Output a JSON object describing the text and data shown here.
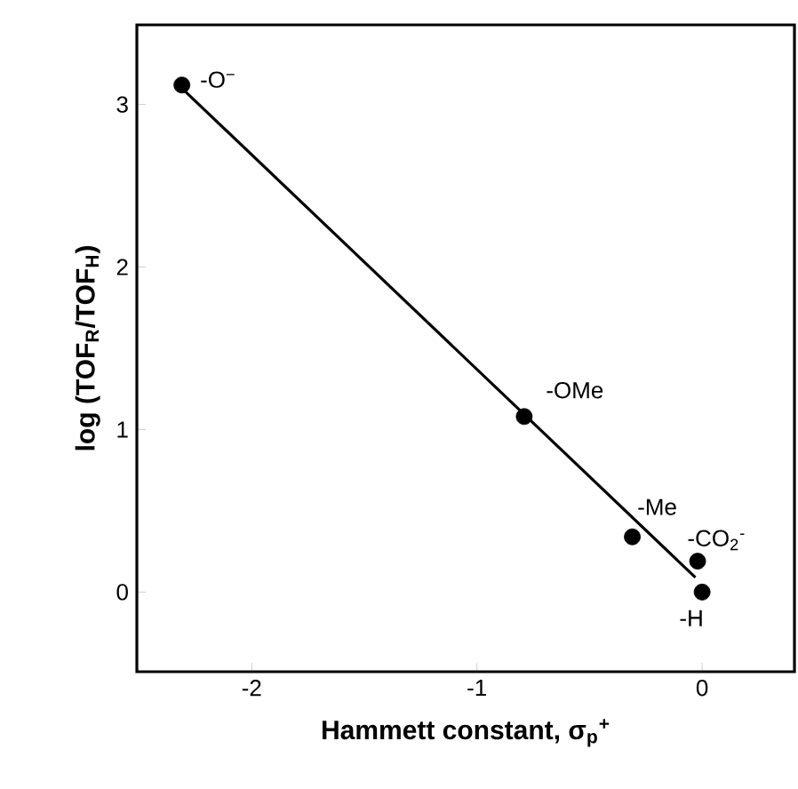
{
  "chart_data": {
    "type": "scatter",
    "xlabel": "**Hammett constant, σ$_{p}$$^{+}$**",
    "ylabel": "**log (TOF$_{R}$/TOF$_{H}$)**",
    "xlim": [
      -2.51,
      0.41
    ],
    "ylim": [
      -0.49,
      3.49
    ],
    "xticks": [
      -2,
      -1,
      0
    ],
    "yticks": [
      0,
      1,
      2,
      3
    ],
    "marker": "circle",
    "series": [
      {
        "color": "#000000",
        "x": [
          -2.31,
          -0.79,
          -0.31,
          -0.02,
          0
        ],
        "values": [
          3.12,
          1.08,
          0.34,
          0.19,
          0
        ]
      },
      {
        "type": "line",
        "color": "#000000",
        "marker": "none",
        "x": [
          -2.31,
          -0.03
        ],
        "values": [
          3.1,
          0.09
        ]
      }
    ],
    "annotations": [
      {
        "text": "-O$^{−}$",
        "x": -2.31,
        "y": 3.12
      },
      {
        "text": "-OMe",
        "x": -0.79,
        "y": 1.08
      },
      {
        "text": "-Me",
        "x": -0.31,
        "y": 0.34
      },
      {
        "text": "-CO$_{2}$$^{-}$",
        "x": -0.02,
        "y": 0.19
      },
      {
        "text": "-H",
        "x": 0,
        "y": 0
      }
    ]
  }
}
